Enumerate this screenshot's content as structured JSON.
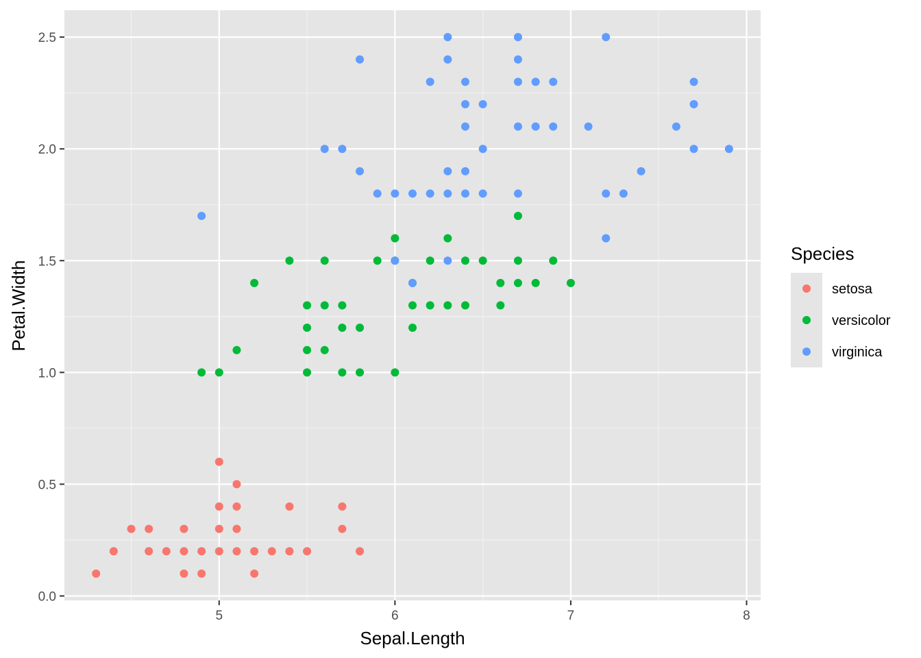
{
  "chart_data": {
    "type": "scatter",
    "title": "",
    "xlabel": "Sepal.Length",
    "ylabel": "Petal.Width",
    "xlim": [
      4.12,
      8.08
    ],
    "ylim": [
      -0.02,
      2.62
    ],
    "x_ticks": [
      5,
      6,
      7,
      8
    ],
    "x_tick_labels": [
      "5",
      "6",
      "7",
      "8"
    ],
    "y_ticks": [
      0,
      0.5,
      1,
      1.5,
      2,
      2.5
    ],
    "y_tick_labels": [
      "0.0",
      "0.5",
      "1.0",
      "1.5",
      "2.0",
      "2.5"
    ],
    "grid": true,
    "background": "#e5e5e5",
    "legend": {
      "title": "Species",
      "position": "right"
    },
    "series": [
      {
        "name": "setosa",
        "color": "#F8766D",
        "points": [
          [
            4.3,
            0.1
          ],
          [
            4.4,
            0.2
          ],
          [
            4.5,
            0.3
          ],
          [
            4.6,
            0.3
          ],
          [
            4.6,
            0.2
          ],
          [
            4.7,
            0.2
          ],
          [
            4.8,
            0.3
          ],
          [
            4.8,
            0.2
          ],
          [
            4.8,
            0.1
          ],
          [
            4.9,
            0.2
          ],
          [
            4.9,
            0.1
          ],
          [
            5.0,
            0.6
          ],
          [
            5.0,
            0.4
          ],
          [
            5.0,
            0.3
          ],
          [
            5.0,
            0.2
          ],
          [
            5.1,
            0.5
          ],
          [
            5.1,
            0.4
          ],
          [
            5.1,
            0.3
          ],
          [
            5.1,
            0.2
          ],
          [
            5.2,
            0.2
          ],
          [
            5.2,
            0.1
          ],
          [
            5.3,
            0.2
          ],
          [
            5.4,
            0.4
          ],
          [
            5.4,
            0.2
          ],
          [
            5.5,
            0.2
          ],
          [
            5.7,
            0.4
          ],
          [
            5.7,
            0.3
          ],
          [
            5.8,
            0.2
          ]
        ]
      },
      {
        "name": "versicolor",
        "color": "#00BA38",
        "points": [
          [
            4.9,
            1.0
          ],
          [
            5.0,
            1.0
          ],
          [
            5.1,
            1.1
          ],
          [
            5.2,
            1.4
          ],
          [
            5.4,
            1.5
          ],
          [
            5.5,
            1.3
          ],
          [
            5.5,
            1.2
          ],
          [
            5.5,
            1.1
          ],
          [
            5.5,
            1.0
          ],
          [
            5.6,
            1.5
          ],
          [
            5.6,
            1.3
          ],
          [
            5.6,
            1.1
          ],
          [
            5.7,
            1.3
          ],
          [
            5.7,
            1.2
          ],
          [
            5.7,
            1.0
          ],
          [
            5.8,
            1.2
          ],
          [
            5.8,
            1.0
          ],
          [
            5.9,
            1.5
          ],
          [
            6.0,
            1.6
          ],
          [
            6.0,
            1.5
          ],
          [
            6.0,
            1.0
          ],
          [
            6.1,
            1.4
          ],
          [
            6.1,
            1.3
          ],
          [
            6.1,
            1.2
          ],
          [
            6.2,
            1.5
          ],
          [
            6.2,
            1.3
          ],
          [
            6.3,
            1.6
          ],
          [
            6.3,
            1.3
          ],
          [
            6.4,
            1.5
          ],
          [
            6.4,
            1.3
          ],
          [
            6.5,
            1.5
          ],
          [
            6.6,
            1.4
          ],
          [
            6.6,
            1.3
          ],
          [
            6.7,
            1.7
          ],
          [
            6.7,
            1.5
          ],
          [
            6.7,
            1.4
          ],
          [
            6.8,
            1.4
          ],
          [
            6.9,
            1.5
          ],
          [
            7.0,
            1.4
          ]
        ]
      },
      {
        "name": "virginica",
        "color": "#619CFF",
        "points": [
          [
            4.9,
            1.7
          ],
          [
            5.6,
            2.0
          ],
          [
            5.7,
            2.0
          ],
          [
            5.8,
            2.4
          ],
          [
            5.8,
            1.9
          ],
          [
            5.9,
            1.8
          ],
          [
            6.0,
            1.8
          ],
          [
            6.0,
            1.5
          ],
          [
            6.1,
            1.8
          ],
          [
            6.1,
            1.4
          ],
          [
            6.2,
            2.3
          ],
          [
            6.2,
            1.8
          ],
          [
            6.3,
            2.5
          ],
          [
            6.3,
            2.4
          ],
          [
            6.3,
            1.9
          ],
          [
            6.3,
            1.8
          ],
          [
            6.3,
            1.5
          ],
          [
            6.4,
            2.3
          ],
          [
            6.4,
            2.2
          ],
          [
            6.4,
            2.1
          ],
          [
            6.4,
            1.9
          ],
          [
            6.4,
            1.8
          ],
          [
            6.5,
            2.2
          ],
          [
            6.5,
            2.0
          ],
          [
            6.5,
            1.8
          ],
          [
            6.7,
            2.5
          ],
          [
            6.7,
            2.4
          ],
          [
            6.7,
            2.3
          ],
          [
            6.7,
            2.1
          ],
          [
            6.7,
            1.8
          ],
          [
            6.8,
            2.3
          ],
          [
            6.8,
            2.1
          ],
          [
            6.9,
            2.3
          ],
          [
            6.9,
            2.1
          ],
          [
            7.1,
            2.1
          ],
          [
            7.2,
            2.5
          ],
          [
            7.2,
            1.8
          ],
          [
            7.2,
            1.6
          ],
          [
            7.3,
            1.8
          ],
          [
            7.4,
            1.9
          ],
          [
            7.6,
            2.1
          ],
          [
            7.7,
            2.3
          ],
          [
            7.7,
            2.2
          ],
          [
            7.7,
            2.0
          ],
          [
            7.9,
            2.0
          ]
        ]
      }
    ]
  }
}
